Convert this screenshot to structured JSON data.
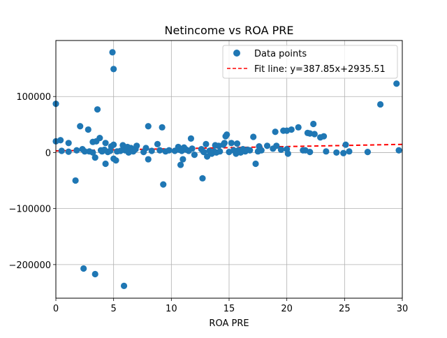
{
  "chart_data": {
    "type": "scatter",
    "title": "Netincome vs ROA PRE",
    "xlabel": "ROA PRE",
    "ylabel": "",
    "xlim": [
      0,
      30
    ],
    "ylim": [
      -260000,
      200000
    ],
    "x_ticks": [
      0,
      5,
      10,
      15,
      20,
      25,
      30
    ],
    "x_tick_labels": [
      "0",
      "5",
      "10",
      "15",
      "20",
      "25",
      "30"
    ],
    "y_ticks": [
      -200000,
      -100000,
      0,
      100000
    ],
    "y_tick_labels": [
      "−200000",
      "−100000",
      "0",
      "100000"
    ],
    "grid": true,
    "legend_position": "top-right",
    "colors": {
      "points": "#1f77b4",
      "fit": "#ff0000",
      "grid": "#b0b0b0",
      "frame": "#000000"
    },
    "series": [
      {
        "name": "Data points",
        "kind": "scatter",
        "legend_label": "Data points",
        "points": [
          [
            0.0,
            87000
          ],
          [
            0.0,
            20000
          ],
          [
            0.4,
            22000
          ],
          [
            0.5,
            3000
          ],
          [
            1.1,
            1500
          ],
          [
            1.1,
            17000
          ],
          [
            1.7,
            -50000
          ],
          [
            1.8,
            4000
          ],
          [
            2.1,
            47000
          ],
          [
            2.3,
            6000
          ],
          [
            2.4,
            -207000
          ],
          [
            2.5,
            2000
          ],
          [
            2.8,
            41000
          ],
          [
            2.9,
            2000
          ],
          [
            3.2,
            0
          ],
          [
            3.2,
            19000
          ],
          [
            3.4,
            -9000
          ],
          [
            3.4,
            -217000
          ],
          [
            3.5,
            20000
          ],
          [
            3.6,
            77000
          ],
          [
            3.8,
            26000
          ],
          [
            3.9,
            4000
          ],
          [
            4.0,
            2000
          ],
          [
            4.2,
            5000
          ],
          [
            4.3,
            -20000
          ],
          [
            4.3,
            17000
          ],
          [
            4.5,
            1000
          ],
          [
            4.7,
            3000
          ],
          [
            4.8,
            11000
          ],
          [
            4.9,
            179000
          ],
          [
            5.0,
            149000
          ],
          [
            5.0,
            14000
          ],
          [
            5.0,
            -11000
          ],
          [
            5.2,
            -14000
          ],
          [
            5.3,
            2000
          ],
          [
            5.6,
            3000
          ],
          [
            5.8,
            13000
          ],
          [
            5.9,
            -238000
          ],
          [
            6.0,
            4000
          ],
          [
            6.2,
            10000
          ],
          [
            6.3,
            0
          ],
          [
            6.5,
            8000
          ],
          [
            6.7,
            2000
          ],
          [
            6.9,
            6000
          ],
          [
            7.0,
            12000
          ],
          [
            7.6,
            1000
          ],
          [
            7.8,
            8000
          ],
          [
            8.0,
            47000
          ],
          [
            8.0,
            -12000
          ],
          [
            8.3,
            3000
          ],
          [
            8.8,
            15000
          ],
          [
            9.0,
            4000
          ],
          [
            9.2,
            45000
          ],
          [
            9.3,
            -57000
          ],
          [
            9.5,
            2000
          ],
          [
            9.8,
            4000
          ],
          [
            10.3,
            3000
          ],
          [
            10.6,
            10000
          ],
          [
            10.7,
            5000
          ],
          [
            10.8,
            -22000
          ],
          [
            10.9,
            3000
          ],
          [
            11.0,
            -12000
          ],
          [
            11.1,
            9000
          ],
          [
            11.3,
            5000
          ],
          [
            11.5,
            3000
          ],
          [
            11.7,
            25000
          ],
          [
            11.8,
            7000
          ],
          [
            12.0,
            -4000
          ],
          [
            12.6,
            6000
          ],
          [
            12.7,
            -46000
          ],
          [
            12.8,
            1000
          ],
          [
            13.0,
            15000
          ],
          [
            13.1,
            -7000
          ],
          [
            13.3,
            3000
          ],
          [
            13.5,
            -2000
          ],
          [
            13.7,
            2000
          ],
          [
            13.8,
            13000
          ],
          [
            13.9,
            0
          ],
          [
            14.1,
            12000
          ],
          [
            14.2,
            2000
          ],
          [
            14.5,
            14000
          ],
          [
            14.6,
            17000
          ],
          [
            14.7,
            29000
          ],
          [
            14.8,
            32000
          ],
          [
            15.0,
            1000
          ],
          [
            15.2,
            17000
          ],
          [
            15.4,
            4000
          ],
          [
            15.6,
            -2000
          ],
          [
            15.7,
            16000
          ],
          [
            15.8,
            4000
          ],
          [
            16.0,
            0
          ],
          [
            16.2,
            6000
          ],
          [
            16.4,
            2000
          ],
          [
            16.6,
            5000
          ],
          [
            16.8,
            4000
          ],
          [
            17.1,
            28000
          ],
          [
            17.3,
            -20000
          ],
          [
            17.5,
            2000
          ],
          [
            17.6,
            11000
          ],
          [
            17.8,
            4000
          ],
          [
            18.3,
            12000
          ],
          [
            18.8,
            7000
          ],
          [
            19.0,
            37000
          ],
          [
            19.1,
            12000
          ],
          [
            19.5,
            5000
          ],
          [
            19.7,
            39000
          ],
          [
            20.0,
            39000
          ],
          [
            20.0,
            6000
          ],
          [
            20.1,
            -2000
          ],
          [
            20.4,
            41000
          ],
          [
            21.0,
            45000
          ],
          [
            21.4,
            4000
          ],
          [
            21.6,
            4000
          ],
          [
            21.8,
            35000
          ],
          [
            22.0,
            34000
          ],
          [
            22.0,
            1000
          ],
          [
            22.3,
            51000
          ],
          [
            22.4,
            33000
          ],
          [
            22.9,
            27000
          ],
          [
            23.2,
            29000
          ],
          [
            23.4,
            2000
          ],
          [
            24.3,
            0
          ],
          [
            24.9,
            -1000
          ],
          [
            25.1,
            14000
          ],
          [
            25.4,
            2000
          ],
          [
            27.0,
            1000
          ],
          [
            28.1,
            86000
          ],
          [
            29.5,
            123000
          ],
          [
            29.7,
            4000
          ]
        ]
      },
      {
        "name": "Fit line",
        "kind": "line",
        "legend_label": "Fit line: y=387.85x+2935.51",
        "slope": 387.85,
        "intercept": 2935.51,
        "x_range": [
          0,
          30
        ]
      }
    ]
  }
}
